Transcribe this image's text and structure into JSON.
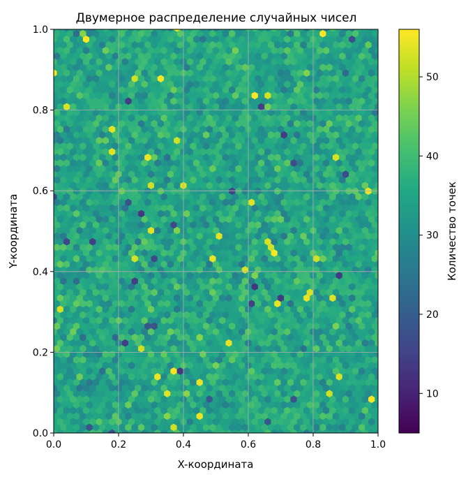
{
  "chart_data": {
    "type": "heatmap",
    "subtype": "hexbin",
    "title": "Двумерное распределение случайных чисел",
    "xlabel": "X-координата",
    "ylabel": "Y-координата",
    "xlim": [
      0.0,
      1.0
    ],
    "ylim": [
      0.0,
      1.0
    ],
    "x_ticks": [
      "0.0",
      "0.2",
      "0.4",
      "0.6",
      "0.8",
      "1.0"
    ],
    "y_ticks": [
      "0.0",
      "0.2",
      "0.4",
      "0.6",
      "0.8",
      "1.0"
    ],
    "grid": true,
    "colormap": "viridis",
    "colorbar": {
      "label": "Количество точек",
      "range": [
        5,
        56
      ],
      "ticks": [
        "10",
        "20",
        "30",
        "40",
        "50"
      ]
    },
    "bins": {
      "gridsize": 50,
      "distribution": "approximately uniform",
      "typical_count": 35,
      "min_count": 5,
      "max_count": 56
    }
  }
}
